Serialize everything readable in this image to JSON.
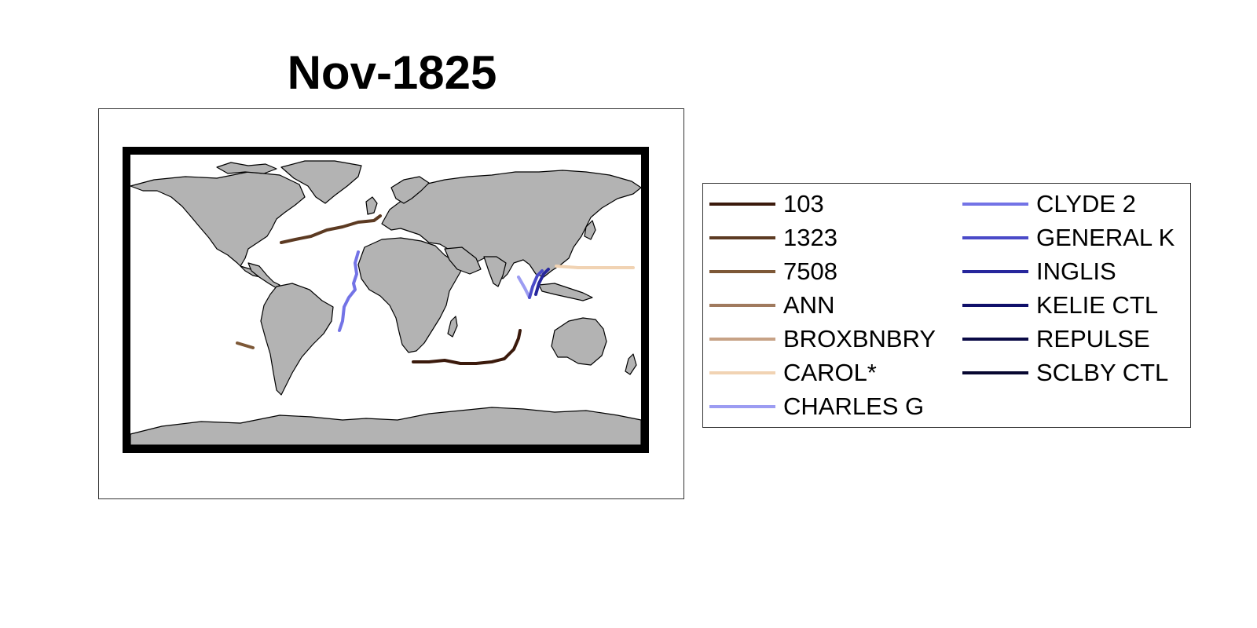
{
  "title": "Nov-1825",
  "map": {
    "land_color": "#b3b3b3",
    "coast_color": "#000000",
    "ocean_color": "#ffffff",
    "frame_color": "#000000"
  },
  "legend": {
    "columns": [
      [
        {
          "label": "103",
          "color": "#3b1a0c"
        },
        {
          "label": "1323",
          "color": "#5c3a22"
        },
        {
          "label": "7508",
          "color": "#7d5837"
        },
        {
          "label": "ANN",
          "color": "#a07a5e"
        },
        {
          "label": "BROXBNBRY",
          "color": "#c7a286"
        },
        {
          "label": "CAROL*",
          "color": "#f1d3b3"
        },
        {
          "label": "CHARLES G",
          "color": "#9c9cf2"
        }
      ],
      [
        {
          "label": "CLYDE 2",
          "color": "#7373e6"
        },
        {
          "label": "GENERAL K",
          "color": "#4a4ac8"
        },
        {
          "label": "INGLIS",
          "color": "#26269c"
        },
        {
          "label": "KELIE CTL",
          "color": "#10106a"
        },
        {
          "label": "REPULSE",
          "color": "#0a0a45"
        },
        {
          "label": "SCLBY CTL",
          "color": "#070730"
        }
      ]
    ]
  },
  "tracks": [
    {
      "name": "103",
      "color": "#3b1a0c"
    },
    {
      "name": "1323",
      "color": "#5c3a22"
    },
    {
      "name": "7508",
      "color": "#7d5837"
    },
    {
      "name": "CAROL*",
      "color": "#f1d3b3"
    },
    {
      "name": "CHARLES G",
      "color": "#9c9cf2"
    },
    {
      "name": "CLYDE 2",
      "color": "#7373e6"
    },
    {
      "name": "GENERAL K",
      "color": "#4a4ac8"
    },
    {
      "name": "INGLIS",
      "color": "#26269c"
    }
  ]
}
